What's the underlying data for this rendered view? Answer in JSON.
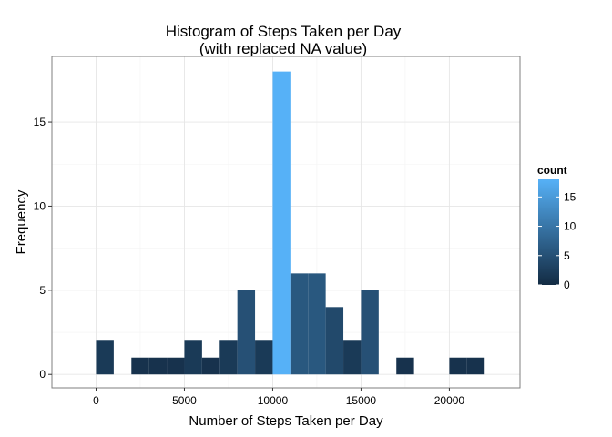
{
  "chart_data": {
    "type": "bar",
    "title": [
      "Histogram of Steps Taken per Day",
      "(with replaced NA value)"
    ],
    "xlabel": "Number of Steps Taken per Day",
    "ylabel": "Frequency",
    "xlim": [
      -2500,
      24000
    ],
    "ylim": [
      -0.8,
      18.9
    ],
    "x_ticks": [
      0,
      5000,
      10000,
      15000,
      20000
    ],
    "x_tick_labels": [
      "0",
      "5000",
      "10000",
      "15000",
      "20000"
    ],
    "y_ticks": [
      0,
      5,
      10,
      15
    ],
    "y_tick_labels": [
      "0",
      "5",
      "10",
      "15"
    ],
    "bin_width": 1000,
    "bins": [
      {
        "start": 0,
        "end": 1000,
        "count": 2
      },
      {
        "start": 1000,
        "end": 2000,
        "count": 0
      },
      {
        "start": 2000,
        "end": 3000,
        "count": 1
      },
      {
        "start": 3000,
        "end": 4000,
        "count": 1
      },
      {
        "start": 4000,
        "end": 5000,
        "count": 1
      },
      {
        "start": 5000,
        "end": 6000,
        "count": 2
      },
      {
        "start": 6000,
        "end": 7000,
        "count": 1
      },
      {
        "start": 7000,
        "end": 8000,
        "count": 2
      },
      {
        "start": 8000,
        "end": 9000,
        "count": 5
      },
      {
        "start": 9000,
        "end": 10000,
        "count": 2
      },
      {
        "start": 10000,
        "end": 11000,
        "count": 18
      },
      {
        "start": 11000,
        "end": 12000,
        "count": 6
      },
      {
        "start": 12000,
        "end": 13000,
        "count": 6
      },
      {
        "start": 13000,
        "end": 14000,
        "count": 4
      },
      {
        "start": 14000,
        "end": 15000,
        "count": 2
      },
      {
        "start": 15000,
        "end": 16000,
        "count": 5
      },
      {
        "start": 16000,
        "end": 17000,
        "count": 0
      },
      {
        "start": 17000,
        "end": 18000,
        "count": 1
      },
      {
        "start": 18000,
        "end": 19000,
        "count": 0
      },
      {
        "start": 19000,
        "end": 20000,
        "count": 0
      },
      {
        "start": 20000,
        "end": 21000,
        "count": 1
      },
      {
        "start": 21000,
        "end": 22000,
        "count": 1
      }
    ],
    "grid": true,
    "legend": {
      "title": "count",
      "position": "right",
      "min": 0,
      "max": 18,
      "ticks": [
        0,
        5,
        10,
        15
      ],
      "tick_labels": [
        "0",
        "5",
        "10",
        "15"
      ]
    },
    "colors": {
      "low": "#132B43",
      "high": "#56B1F7",
      "panel_border": "#7f7f7f",
      "grid_major": "#e6e6e6",
      "grid_minor": "#f3f3f3"
    }
  }
}
